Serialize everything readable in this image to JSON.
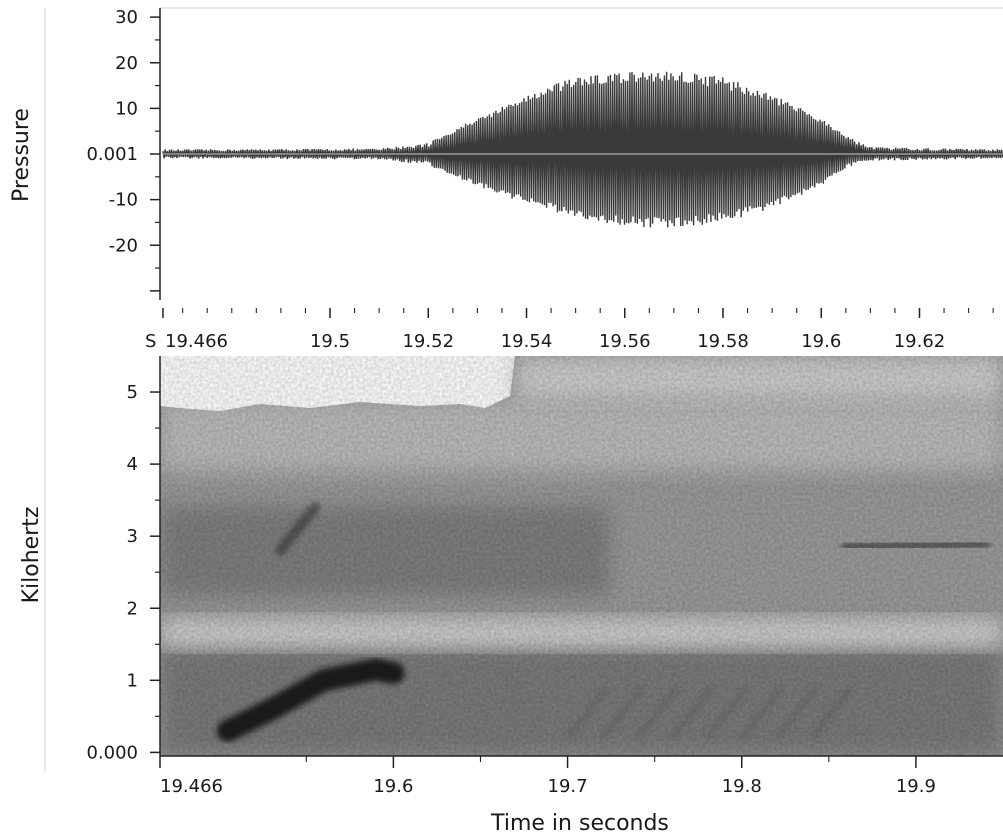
{
  "chart_data": [
    {
      "type": "line",
      "name": "waveform",
      "ylabel": "Pressure",
      "xlabel": "",
      "x_unit_prefix": "S",
      "x_ticks": [
        19.466,
        19.5,
        19.52,
        19.54,
        19.56,
        19.58,
        19.6,
        19.62
      ],
      "x_tick_labels": [
        "19.466",
        "19.5",
        "19.52",
        "19.54",
        "19.56",
        "19.58",
        "19.6",
        "19.62"
      ],
      "xlim": [
        19.466,
        19.637
      ],
      "y_ticks": [
        30,
        20,
        10,
        0.001,
        -10,
        -20
      ],
      "y_tick_labels": [
        "30",
        "20",
        "10",
        "0.001",
        "-10",
        "-20"
      ],
      "ylim": [
        -32,
        32
      ],
      "series": [
        {
          "color": "#3a3a3a",
          "envelope": {
            "x": [
              19.466,
              19.51,
              19.52,
              19.53,
              19.54,
              19.55,
              19.56,
              19.57,
              19.58,
              19.59,
              19.6,
              19.605,
              19.61,
              19.637
            ],
            "upper": [
              1,
              1.2,
              2.5,
              8,
              13,
              17,
              18,
              18.5,
              17,
              13,
              8,
              4,
              1.5,
              1
            ],
            "lower": [
              -1,
              -1.2,
              -2.5,
              -7,
              -11,
              -14,
              -16,
              -16.5,
              -15,
              -12,
              -7,
              -3,
              -1.5,
              -1
            ]
          }
        }
      ]
    },
    {
      "type": "heatmap",
      "name": "spectrogram",
      "xlabel": "Time in seconds",
      "ylabel": "Kilohertz",
      "x_ticks": [
        19.466,
        19.6,
        19.7,
        19.8,
        19.9
      ],
      "x_tick_labels": [
        "19.466",
        "19.6",
        "19.7",
        "19.8",
        "19.9"
      ],
      "xlim": [
        19.466,
        19.95
      ],
      "y_ticks": [
        5,
        4,
        3,
        2,
        1,
        0
      ],
      "y_tick_labels": [
        "5",
        "4",
        "3",
        "2",
        "1",
        "0.000"
      ],
      "ylim": [
        -0.05,
        5.5
      ],
      "colormap": "grayscale (dark = high energy)",
      "features": [
        {
          "points": [
            [
              19.505,
              0.3
            ],
            [
              19.53,
              0.6
            ],
            [
              19.56,
              1.0
            ],
            [
              19.59,
              1.15
            ],
            [
              19.6,
              1.1
            ]
          ],
          "intensity": 1.0
        },
        {
          "points": [
            [
              19.535,
              2.8
            ],
            [
              19.555,
              3.4
            ]
          ],
          "intensity": 0.5
        },
        {
          "points": [
            [
              19.86,
              2.85
            ],
            [
              19.94,
              2.9
            ]
          ],
          "intensity": 0.6
        }
      ]
    }
  ]
}
